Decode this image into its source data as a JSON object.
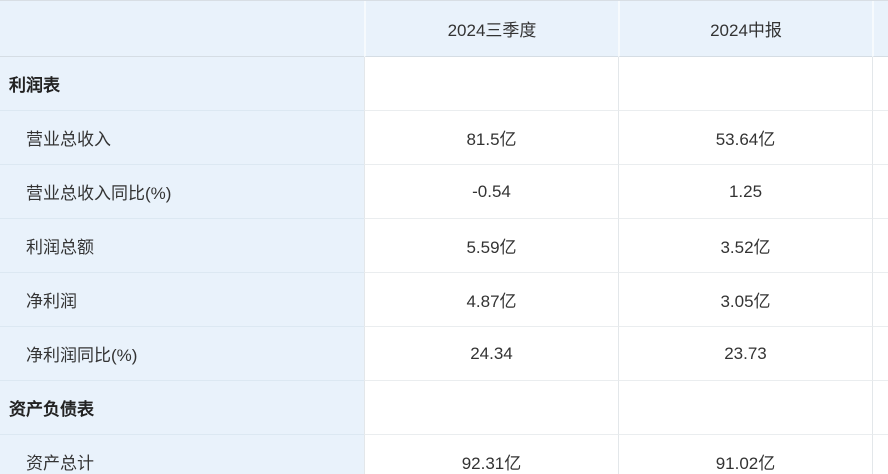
{
  "table": {
    "columns": [
      "2024三季度",
      "2024中报"
    ],
    "rows": [
      {
        "type": "section",
        "label": "利润表",
        "values": [
          "",
          ""
        ]
      },
      {
        "type": "item",
        "label": "营业总收入",
        "values": [
          "81.5亿",
          "53.64亿"
        ]
      },
      {
        "type": "item",
        "label": "营业总收入同比(%)",
        "values": [
          "-0.54",
          "1.25"
        ]
      },
      {
        "type": "item",
        "label": "利润总额",
        "values": [
          "5.59亿",
          "3.52亿"
        ]
      },
      {
        "type": "item",
        "label": "净利润",
        "values": [
          "4.87亿",
          "3.05亿"
        ]
      },
      {
        "type": "item",
        "label": "净利润同比(%)",
        "values": [
          "24.34",
          "23.73"
        ]
      },
      {
        "type": "section",
        "label": "资产负债表",
        "values": [
          "",
          ""
        ]
      },
      {
        "type": "item",
        "label": "资产总计",
        "values": [
          "92.31亿",
          "91.02亿"
        ]
      }
    ],
    "colors": {
      "header_bg": "#e9f2fb",
      "label_column_bg": "#e9f2fb",
      "body_bg": "#ffffff",
      "divider": "#eaedef",
      "text": "#333333"
    }
  }
}
